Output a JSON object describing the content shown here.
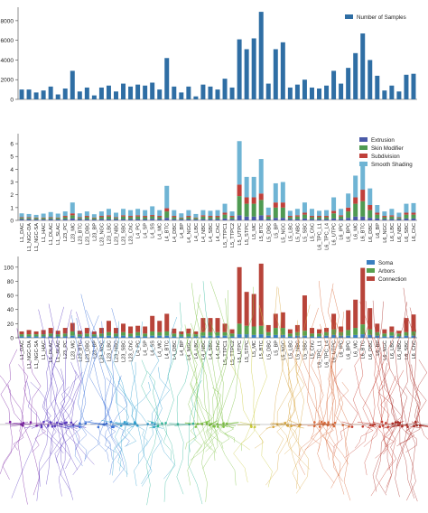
{
  "colors": {
    "samples": "#2f6ea4",
    "extrusion": "#4a5aa8",
    "skin_modifier": "#4f9a52",
    "subdivision": "#c0403a",
    "smooth_shading": "#6fb4d4",
    "soma": "#3a7fc0",
    "arbors": "#58a04e",
    "connection": "#b8443a",
    "axis": "#444444",
    "text": "#222222"
  },
  "chart_data": [
    {
      "type": "bar",
      "title": "",
      "xlabel": "",
      "ylabel": "",
      "ylim": [
        0,
        9000
      ],
      "yticks": [
        "0",
        "2000",
        "4000",
        "6000",
        "8000"
      ],
      "legend_position": "top-right",
      "categories": [
        "L1_DAC",
        "L1_NGC-DA",
        "L1_NGC-SA",
        "L1_HAC",
        "L1_DLAC",
        "L1_SLAC",
        "L23_PC",
        "L23_MC",
        "L23_BTC",
        "L23_DBC",
        "L23_BP",
        "L23_NGC",
        "L23_LBC",
        "L23_NBC",
        "L23_SBC",
        "L23_ChC",
        "L4_PC",
        "L4_SP",
        "L4_SS",
        "L4_MC",
        "L4_BTC",
        "L4_DBC",
        "L4_BP",
        "L4_NGC",
        "L4_LBC",
        "L4_NBC",
        "L4_SBC",
        "L4_ChC",
        "L5_TTPC1",
        "L5_TTPC2",
        "L5_UTPC",
        "L5_STPC",
        "L5_MC",
        "L5_BTC",
        "L5_DBC",
        "L5_BP",
        "L5_NGC",
        "L5_LBC",
        "L5_NBC",
        "L5_SBC",
        "L5_ChC",
        "L6_TPC_L1",
        "L6_TPC_L4",
        "L6_UTPC",
        "L6_IPC",
        "L6_BPC",
        "L6_MC",
        "L6_BTC",
        "L6_DBC",
        "L6_BP",
        "L6_NGC",
        "L6_LBC",
        "L6_NBC",
        "L6_SBC",
        "L6_ChC"
      ],
      "series": [
        {
          "name": "Number of Samples",
          "values": [
            1000,
            1000,
            700,
            900,
            1300,
            500,
            1100,
            2900,
            800,
            1200,
            400,
            1200,
            1400,
            800,
            1600,
            1300,
            1500,
            1400,
            1700,
            1000,
            4200,
            1300,
            700,
            1300,
            300,
            1500,
            1300,
            1000,
            2100,
            1200,
            6100,
            5100,
            6200,
            8900,
            1600,
            5100,
            5800,
            1200,
            1500,
            2000,
            1200,
            1100,
            1400,
            2900,
            1600,
            3200,
            4700,
            6700,
            4000,
            2400,
            900,
            1400,
            800,
            2500,
            2600
          ]
        }
      ]
    },
    {
      "type": "bar",
      "stacked": true,
      "title": "",
      "xlabel": "",
      "ylabel": "",
      "ylim": [
        0,
        6.5
      ],
      "yticks": [
        "0",
        "1",
        "2",
        "3",
        "4",
        "5",
        "6"
      ],
      "legend_position": "top-right",
      "categories": [
        "L1_DAC",
        "L1_NGC-DA",
        "L1_NGC-SA",
        "L1_HAC",
        "L1_DLAC",
        "L1_SLAC",
        "L23_PC",
        "L23_MC",
        "L23_BTC",
        "L23_DBC",
        "L23_BP",
        "L23_NGC",
        "L23_LBC",
        "L23_NBC",
        "L23_SBC",
        "L23_ChC",
        "L4_PC",
        "L4_SP",
        "L4_SS",
        "L4_MC",
        "L4_BTC",
        "L4_DBC",
        "L4_BP",
        "L4_NGC",
        "L4_LBC",
        "L4_NBC",
        "L4_SBC",
        "L4_ChC",
        "L5_TTPC1",
        "L5_TTPC2",
        "L5_UTPC",
        "L5_STPC",
        "L5_MC",
        "L5_BTC",
        "L5_DBC",
        "L5_BP",
        "L5_NGC",
        "L5_LBC",
        "L5_NBC",
        "L5_SBC",
        "L5_ChC",
        "L6_TPC_L1",
        "L6_TPC_L4",
        "L6_UTPC",
        "L6_IPC",
        "L6_BPC",
        "L6_MC",
        "L6_BTC",
        "L6_DBC",
        "L6_BP",
        "L6_NGC",
        "L6_LBC",
        "L6_NBC",
        "L6_SBC",
        "L6_ChC"
      ],
      "series": [
        {
          "name": "Extrusion",
          "values": [
            0.1,
            0.1,
            0.08,
            0.08,
            0.1,
            0.08,
            0.1,
            0.15,
            0.1,
            0.1,
            0.08,
            0.1,
            0.1,
            0.1,
            0.1,
            0.1,
            0.1,
            0.1,
            0.12,
            0.1,
            0.2,
            0.1,
            0.08,
            0.1,
            0.08,
            0.1,
            0.1,
            0.1,
            0.15,
            0.1,
            0.4,
            0.3,
            0.3,
            0.4,
            0.1,
            0.2,
            0.2,
            0.1,
            0.1,
            0.15,
            0.1,
            0.1,
            0.1,
            0.15,
            0.1,
            0.2,
            0.3,
            0.3,
            0.2,
            0.15,
            0.1,
            0.1,
            0.1,
            0.15,
            0.15
          ]
        },
        {
          "name": "Skin Modifier",
          "values": [
            0.1,
            0.1,
            0.1,
            0.1,
            0.1,
            0.1,
            0.15,
            0.25,
            0.1,
            0.15,
            0.1,
            0.15,
            0.2,
            0.1,
            0.2,
            0.15,
            0.2,
            0.15,
            0.2,
            0.15,
            0.5,
            0.15,
            0.1,
            0.15,
            0.1,
            0.2,
            0.15,
            0.15,
            0.3,
            0.15,
            1.5,
            1.0,
            1.0,
            1.2,
            0.2,
            0.8,
            0.8,
            0.15,
            0.2,
            0.3,
            0.15,
            0.15,
            0.15,
            0.4,
            0.2,
            0.5,
            1.0,
            1.2,
            0.6,
            0.3,
            0.15,
            0.2,
            0.1,
            0.3,
            0.3
          ]
        },
        {
          "name": "Subdivision",
          "values": [
            0.05,
            0.05,
            0.05,
            0.05,
            0.05,
            0.05,
            0.1,
            0.15,
            0.05,
            0.1,
            0.05,
            0.1,
            0.1,
            0.05,
            0.1,
            0.1,
            0.1,
            0.1,
            0.1,
            0.1,
            0.25,
            0.1,
            0.05,
            0.1,
            0.05,
            0.1,
            0.1,
            0.1,
            0.15,
            0.1,
            0.9,
            0.5,
            0.5,
            0.5,
            0.1,
            0.4,
            0.4,
            0.1,
            0.1,
            0.15,
            0.1,
            0.1,
            0.1,
            0.2,
            0.1,
            0.3,
            0.5,
            0.9,
            0.4,
            0.15,
            0.1,
            0.1,
            0.05,
            0.15,
            0.15
          ]
        },
        {
          "name": "Smooth Shading",
          "values": [
            0.3,
            0.25,
            0.2,
            0.3,
            0.4,
            0.3,
            0.35,
            0.85,
            0.3,
            0.35,
            0.25,
            0.35,
            0.5,
            0.35,
            0.5,
            0.45,
            0.5,
            0.45,
            0.68,
            0.45,
            1.75,
            0.45,
            0.32,
            0.45,
            0.27,
            0.4,
            0.4,
            0.45,
            0.7,
            0.35,
            3.4,
            1.6,
            1.6,
            2.7,
            0.6,
            1.5,
            1.6,
            0.4,
            0.5,
            0.8,
            0.55,
            0.4,
            0.45,
            1.05,
            0.5,
            1.1,
            1.7,
            2.2,
            1.3,
            0.6,
            0.35,
            0.5,
            0.35,
            0.7,
            0.75
          ]
        }
      ]
    },
    {
      "type": "bar",
      "stacked": true,
      "title": "",
      "xlabel": "",
      "ylabel": "",
      "ylim": [
        0,
        110
      ],
      "yticks": [
        "0",
        "20",
        "40",
        "60",
        "80",
        "100"
      ],
      "legend_position": "top-right",
      "categories": [
        "L1_DAC",
        "L1_NGC-DA",
        "L1_NGC-SA",
        "L1_HAC",
        "L1_DLAC",
        "L1_SLAC",
        "L23_PC",
        "L23_MC",
        "L23_BTC",
        "L23_DBC",
        "L23_BP",
        "L23_NGC",
        "L23_LBC",
        "L23_NBC",
        "L23_SBC",
        "L23_ChC",
        "L4_PC",
        "L4_SP",
        "L4_SS",
        "L4_MC",
        "L4_BTC",
        "L4_DBC",
        "L4_BP",
        "L4_NGC",
        "L4_LBC",
        "L4_NBC",
        "L4_SBC",
        "L4_ChC",
        "L5_TTPC1",
        "L5_TTPC2",
        "L5_UTPC",
        "L5_STPC",
        "L5_MC",
        "L5_BTC",
        "L5_DBC",
        "L5_BP",
        "L5_NGC",
        "L5_LBC",
        "L5_NBC",
        "L5_SBC",
        "L5_ChC",
        "L6_TPC_L1",
        "L6_TPC_L4",
        "L6_UTPC",
        "L6_IPC",
        "L6_BPC",
        "L6_MC",
        "L6_BTC",
        "L6_DBC",
        "L6_BP",
        "L6_NGC",
        "L6_LBC",
        "L6_NBC",
        "L6_SBC",
        "L6_ChC"
      ],
      "series": [
        {
          "name": "Soma",
          "values": [
            2,
            2,
            2,
            2,
            2,
            2,
            2,
            3,
            2,
            2,
            2,
            2,
            3,
            2,
            3,
            2,
            3,
            2,
            3,
            3,
            3,
            2,
            2,
            2,
            2,
            3,
            3,
            3,
            3,
            2,
            5,
            5,
            4,
            5,
            3,
            4,
            4,
            2,
            3,
            3,
            2,
            2,
            3,
            4,
            3,
            3,
            4,
            5,
            4,
            3,
            2,
            3,
            2,
            3,
            3
          ]
        },
        {
          "name": "Arbors",
          "values": [
            3,
            3,
            3,
            3,
            4,
            3,
            4,
            6,
            3,
            4,
            3,
            4,
            5,
            4,
            5,
            4,
            5,
            4,
            6,
            5,
            6,
            4,
            3,
            4,
            3,
            5,
            5,
            5,
            5,
            4,
            15,
            12,
            12,
            12,
            5,
            10,
            10,
            4,
            5,
            7,
            4,
            4,
            5,
            8,
            5,
            8,
            10,
            14,
            8,
            5,
            4,
            5,
            4,
            5,
            6
          ]
        },
        {
          "name": "Connection",
          "values": [
            4,
            6,
            4,
            6,
            8,
            5,
            8,
            12,
            5,
            8,
            4,
            8,
            16,
            8,
            12,
            10,
            9,
            10,
            22,
            16,
            25,
            7,
            4,
            7,
            4,
            20,
            20,
            20,
            12,
            6,
            80,
            48,
            46,
            88,
            10,
            20,
            22,
            6,
            10,
            50,
            8,
            6,
            6,
            22,
            8,
            28,
            40,
            80,
            30,
            12,
            6,
            8,
            4,
            20,
            24
          ]
        }
      ]
    }
  ]
}
